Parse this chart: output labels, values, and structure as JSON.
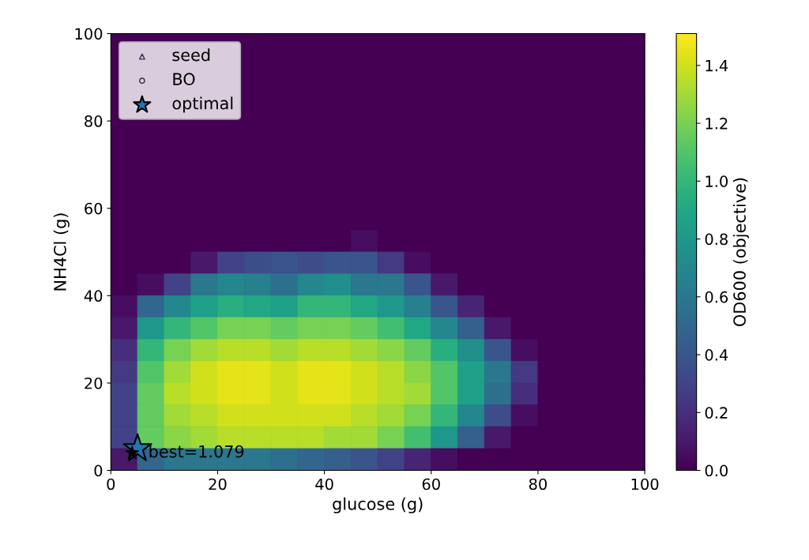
{
  "chart_data": {
    "type": "heatmap",
    "xlabel": "glucose (g)",
    "ylabel": "NH4Cl (g)",
    "clabel": "OD600 (objective)",
    "x": [
      2.5,
      7.5,
      12.5,
      17.5,
      22.5,
      27.5,
      32.5,
      37.5,
      42.5,
      47.5,
      52.5,
      57.5,
      62.5,
      67.5,
      72.5,
      77.5,
      82.5,
      87.5,
      92.5,
      97.5
    ],
    "y": [
      97.5,
      92.5,
      87.5,
      82.5,
      77.5,
      72.5,
      67.5,
      62.5,
      57.5,
      52.5,
      47.5,
      42.5,
      37.5,
      32.5,
      27.5,
      22.5,
      17.5,
      12.5,
      7.5,
      2.5
    ],
    "xlim": [
      0,
      100
    ],
    "ylim": [
      0,
      100
    ],
    "xticks": [
      0,
      20,
      40,
      60,
      80,
      100
    ],
    "yticks": [
      0,
      20,
      40,
      60,
      80,
      100
    ],
    "clim": [
      0,
      1.51
    ],
    "cticks": [
      {
        "value": 0,
        "label": "0.0"
      },
      0.2,
      0.4,
      0.6,
      0.8,
      {
        "value": 1,
        "label": "1.0"
      },
      1.2,
      1.4
    ],
    "cells": [
      [
        0,
        null,
        null,
        null,
        null,
        0,
        0,
        0,
        0,
        0,
        0,
        0,
        0,
        0,
        0,
        0,
        0,
        0,
        0,
        0
      ],
      [
        null,
        null,
        null,
        null,
        null,
        0,
        0,
        0,
        0,
        0,
        0,
        0,
        0,
        0,
        0,
        0,
        0,
        0,
        0,
        0
      ],
      [
        null,
        null,
        null,
        null,
        null,
        0,
        0,
        0,
        0,
        0,
        0,
        0,
        0,
        0,
        0,
        0,
        0,
        0,
        0,
        0
      ],
      [
        null,
        null,
        null,
        null,
        null,
        0,
        0,
        0,
        0,
        0,
        0,
        0,
        0,
        0,
        0,
        0,
        0,
        0,
        0,
        0
      ],
      [
        0,
        0,
        0,
        0,
        0,
        0,
        0,
        0,
        0,
        0,
        0,
        0,
        0,
        0,
        0,
        0,
        0,
        0,
        0,
        0
      ],
      [
        0,
        0,
        0,
        0,
        0,
        0,
        0,
        0,
        0,
        0,
        0,
        0,
        0,
        0,
        0,
        0,
        0,
        0,
        0,
        0
      ],
      [
        0,
        0,
        0,
        0,
        0,
        0,
        0,
        0,
        0,
        0,
        0,
        0,
        0,
        0,
        0,
        0,
        0,
        0,
        0,
        0
      ],
      [
        0,
        0,
        0,
        0,
        0,
        0,
        0,
        0,
        0,
        0,
        0,
        0,
        0,
        0,
        0,
        0,
        0,
        0,
        0,
        0
      ],
      [
        0,
        0,
        0,
        0,
        0,
        0,
        0,
        0,
        0,
        0,
        0,
        0,
        0,
        0,
        0,
        0,
        0,
        0,
        0,
        0
      ],
      [
        0,
        0,
        0,
        0,
        0,
        0,
        0,
        0,
        0,
        0.05,
        0,
        0,
        0,
        0,
        0,
        0,
        0,
        0,
        0,
        0
      ],
      [
        0,
        0,
        0,
        0.1,
        0.3,
        0.35,
        0.4,
        0.35,
        0.4,
        0.4,
        0.25,
        0.05,
        0,
        0,
        0,
        0,
        0,
        0,
        0,
        0
      ],
      [
        0,
        0.05,
        0.3,
        0.6,
        0.7,
        0.65,
        0.55,
        0.7,
        0.75,
        0.6,
        0.6,
        0.4,
        0.1,
        0,
        0,
        0,
        0,
        0,
        0,
        0
      ],
      [
        0.05,
        0.5,
        0.7,
        0.85,
        0.95,
        0.9,
        0.85,
        1.0,
        1.0,
        0.9,
        0.8,
        0.65,
        0.4,
        0.15,
        0,
        0,
        0,
        0,
        0,
        0
      ],
      [
        0.1,
        0.8,
        1.0,
        1.1,
        1.2,
        1.2,
        1.15,
        1.2,
        1.2,
        1.15,
        1.05,
        0.9,
        0.7,
        0.45,
        0.1,
        0,
        0,
        0,
        0,
        0
      ],
      [
        0.2,
        1.0,
        1.2,
        1.3,
        1.35,
        1.35,
        1.3,
        1.35,
        1.35,
        1.3,
        1.25,
        1.15,
        0.95,
        0.75,
        0.4,
        0.05,
        0,
        0,
        0,
        0
      ],
      [
        0.25,
        1.1,
        1.3,
        1.4,
        1.45,
        1.45,
        1.4,
        1.45,
        1.45,
        1.4,
        1.35,
        1.25,
        1.1,
        0.85,
        0.6,
        0.25,
        0,
        0,
        0,
        0
      ],
      [
        0.3,
        1.15,
        1.35,
        1.4,
        1.45,
        1.45,
        1.4,
        1.45,
        1.45,
        1.4,
        1.35,
        1.3,
        1.1,
        0.85,
        0.55,
        0.2,
        0,
        0,
        0,
        0
      ],
      [
        0.3,
        1.15,
        1.3,
        1.35,
        1.4,
        1.4,
        1.4,
        1.4,
        1.4,
        1.35,
        1.3,
        1.2,
        1.0,
        0.7,
        0.35,
        0.05,
        0,
        0,
        0,
        0
      ],
      [
        0.3,
        1.15,
        1.25,
        1.3,
        1.35,
        1.35,
        1.35,
        1.35,
        1.3,
        1.3,
        1.2,
        1.05,
        0.8,
        0.45,
        0.1,
        0,
        0,
        0,
        0,
        0
      ],
      [
        0.1,
        0.5,
        0.6,
        0.6,
        0.6,
        0.6,
        0.55,
        0.5,
        0.45,
        0.4,
        0.3,
        0.15,
        0.05,
        0,
        0,
        0,
        0,
        0,
        0,
        0
      ]
    ],
    "series": [
      {
        "type": "scatter",
        "name": "seed",
        "color": "#333355",
        "marker": "triangle",
        "values": [
          null,
          null,
          null,
          null,
          null,
          null,
          null,
          null,
          null,
          null,
          null,
          null,
          null,
          null,
          null,
          null,
          null,
          null,
          null,
          null
        ]
      },
      {
        "type": "scatter",
        "name": "BO",
        "color": "#333333",
        "marker": "circle",
        "values": [
          null,
          null,
          null,
          null,
          null,
          null,
          null,
          null,
          null,
          null,
          null,
          null,
          null,
          null,
          null,
          null,
          null,
          null,
          null,
          null
        ]
      },
      {
        "type": "scatter",
        "name": "optimal",
        "color": "#1f77b4",
        "marker": "star",
        "x": [
          5
        ],
        "values": [
          5
        ]
      },
      {
        "type": "scatter",
        "color": "#000000",
        "marker": "star",
        "x": [
          4
        ],
        "values": [
          4
        ]
      }
    ],
    "annotations": [
      {
        "text": "best=1.079",
        "x": 7,
        "y": 4
      }
    ],
    "legend": "top left"
  }
}
